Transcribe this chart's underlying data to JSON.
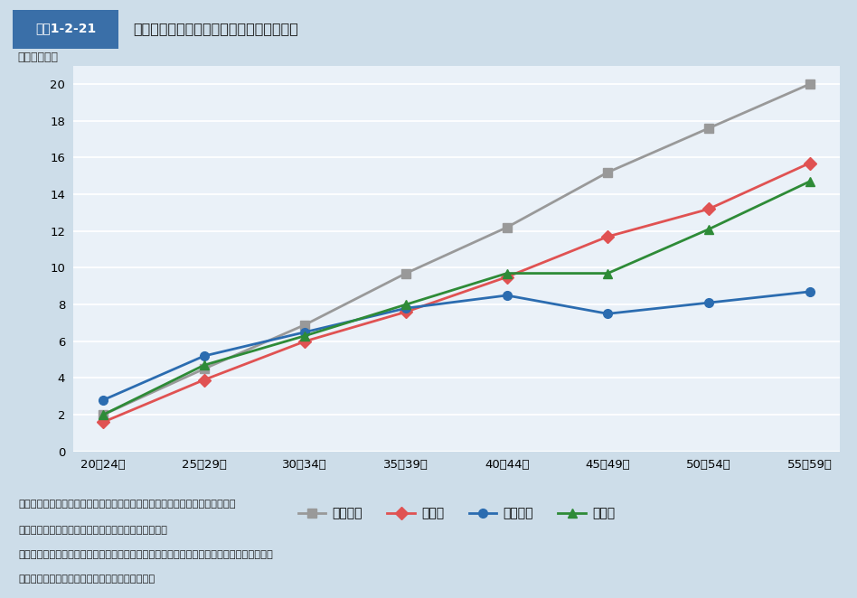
{
  "title_box": "図表1-2-21",
  "title_main": "職種別の平均勤続年数（職種別、年齢別）",
  "ylabel": "（勤続年数）",
  "x_labels": [
    "20～24歳",
    "25～29歳",
    "30～34歳",
    "35～39歳",
    "40～44歳",
    "45～49歳",
    "50～54歳",
    "55～59歳"
  ],
  "series": [
    {
      "name": "全産業計",
      "values": [
        2.0,
        4.5,
        6.9,
        9.7,
        12.2,
        15.2,
        17.6,
        20.0
      ],
      "color": "#999999",
      "marker": "s",
      "zorder": 3
    },
    {
      "name": "看護師",
      "values": [
        1.6,
        3.9,
        6.0,
        7.6,
        9.5,
        11.7,
        13.2,
        15.7
      ],
      "color": "#e05252",
      "marker": "D",
      "zorder": 3
    },
    {
      "name": "介護職員",
      "values": [
        2.8,
        5.2,
        6.5,
        7.8,
        8.5,
        7.5,
        8.1,
        8.7
      ],
      "color": "#2b6cb0",
      "marker": "o",
      "zorder": 3
    },
    {
      "name": "保育士",
      "values": [
        2.0,
        4.7,
        6.3,
        8.0,
        9.7,
        9.7,
        12.1,
        14.7
      ],
      "color": "#2e8b37",
      "marker": "^",
      "zorder": 3
    }
  ],
  "ylim": [
    0,
    21
  ],
  "yticks": [
    0,
    2,
    4,
    6,
    8,
    10,
    12,
    14,
    16,
    18,
    20
  ],
  "header_bg_color": "#dce8f2",
  "title_box_bg": "#3a6fa8",
  "title_box_text_color": "#ffffff",
  "plot_bg_color": "#eaf1f8",
  "footer_bg_color": "#d5e4ef",
  "outer_bg_color": "#cddde9",
  "note_lines": [
    "資料：内閣官房全世代型社会保障構築会議公的価格評価検討委員会第２回資料",
    "（注）　上記は、同調査のうち、一般労働者の数値。",
    "　　　　介護職員は「介護職員（医療・福祉施設等）」と「訪問介護従事者」の加重平均。",
    "　　　　上記の数値は、それぞれ役職者を含む。"
  ]
}
